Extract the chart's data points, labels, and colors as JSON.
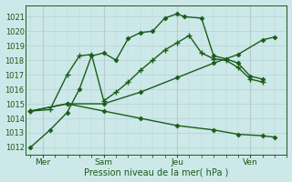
{
  "xlabel": "Pression niveau de la mer( hPa )",
  "bg_color": "#cde8e8",
  "grid_color": "#b8d4d4",
  "vline_color": "#c4a0a0",
  "line_color": "#1a5c1a",
  "ylim": [
    1011.5,
    1021.8
  ],
  "xlim": [
    -0.2,
    10.5
  ],
  "yticks": [
    1012,
    1013,
    1014,
    1015,
    1016,
    1017,
    1018,
    1019,
    1020,
    1021
  ],
  "day_labels": [
    "Mer",
    "Sam",
    "Jeu",
    "Ven"
  ],
  "day_positions": [
    0.5,
    3.0,
    6.0,
    9.0
  ],
  "series": [
    {
      "name": "line1_diamond",
      "x": [
        0.0,
        0.8,
        1.5,
        2.0,
        2.5,
        3.0,
        3.5,
        4.0,
        4.5,
        5.0,
        5.5,
        6.0,
        6.3,
        7.0,
        7.5,
        8.0,
        8.5,
        9.0,
        9.5
      ],
      "y": [
        1012.0,
        1013.2,
        1014.4,
        1016.0,
        1018.3,
        1018.5,
        1018.0,
        1019.5,
        1019.9,
        1020.0,
        1020.9,
        1021.2,
        1021.0,
        1020.9,
        1018.3,
        1018.1,
        1017.8,
        1016.9,
        1016.7
      ],
      "marker": "D",
      "markersize": 2.5,
      "lw": 1.0
    },
    {
      "name": "line2_plus",
      "x": [
        0.0,
        0.8,
        1.5,
        2.0,
        2.5,
        3.0,
        3.5,
        4.0,
        4.5,
        5.0,
        5.5,
        6.0,
        6.5,
        7.0,
        7.5,
        8.0,
        8.5,
        9.0,
        9.5
      ],
      "y": [
        1014.5,
        1014.6,
        1017.0,
        1018.3,
        1018.4,
        1015.2,
        1015.8,
        1016.5,
        1017.3,
        1018.0,
        1018.7,
        1019.2,
        1019.7,
        1018.5,
        1018.1,
        1018.0,
        1017.5,
        1016.7,
        1016.5
      ],
      "marker": "+",
      "markersize": 4.5,
      "lw": 1.0
    },
    {
      "name": "line3_gradual_rise",
      "x": [
        0.0,
        1.5,
        3.0,
        4.5,
        6.0,
        7.5,
        8.5,
        9.5,
        10.0
      ],
      "y": [
        1014.5,
        1015.0,
        1015.0,
        1015.8,
        1016.8,
        1017.8,
        1018.4,
        1019.4,
        1019.6
      ],
      "marker": "D",
      "markersize": 2.5,
      "lw": 1.0
    },
    {
      "name": "line4_flat_decline",
      "x": [
        0.0,
        1.5,
        3.0,
        4.5,
        6.0,
        7.5,
        8.5,
        9.5,
        10.0
      ],
      "y": [
        1014.5,
        1015.0,
        1014.5,
        1014.0,
        1013.5,
        1013.2,
        1012.9,
        1012.8,
        1012.7
      ],
      "marker": "D",
      "markersize": 2.5,
      "lw": 1.0
    }
  ]
}
